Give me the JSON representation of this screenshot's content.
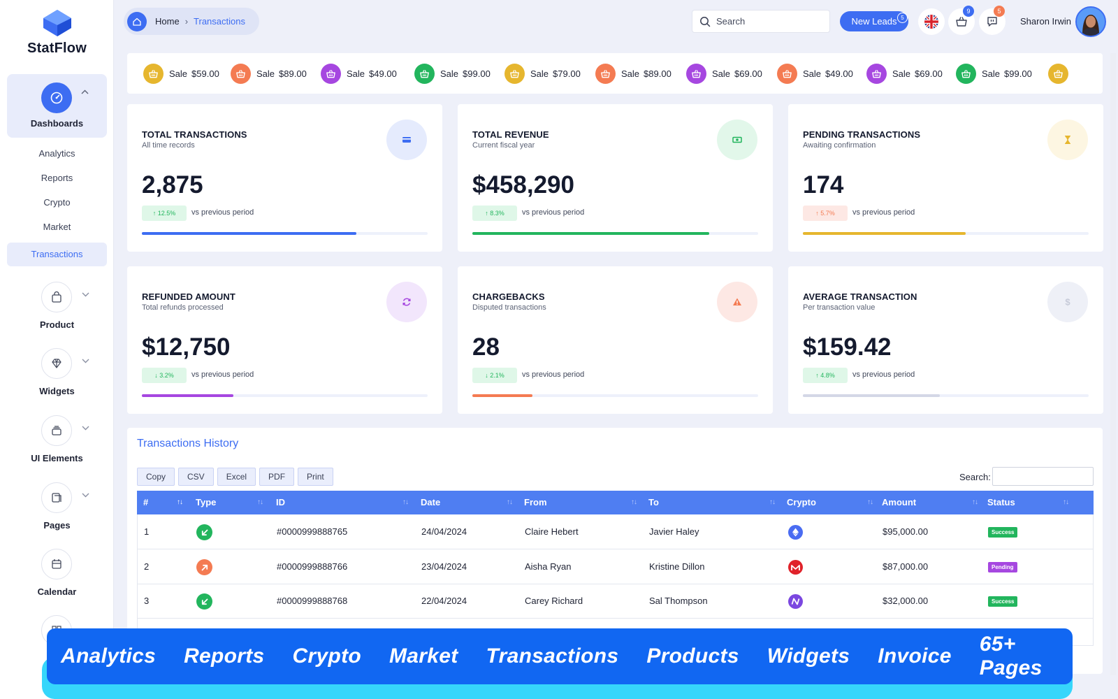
{
  "brand": {
    "name": "StatFlow"
  },
  "sidebar": {
    "dashboards_label": "Dashboards",
    "sub_items": [
      "Analytics",
      "Reports",
      "Crypto",
      "Market",
      "Transactions"
    ],
    "groups": [
      "Product",
      "Widgets",
      "UI Elements",
      "Pages",
      "Calendar"
    ]
  },
  "breadcrumb": {
    "home": "Home",
    "current": "Transactions"
  },
  "topbar": {
    "search_placeholder": "Search",
    "leads_label": "New Leads",
    "leads_count": "5",
    "cart_count": "9",
    "chat_count": "5",
    "user_name": "Sharon Irwin"
  },
  "ticker": [
    {
      "label": "Sale",
      "amount": "$59.00",
      "color": "#e6b62e"
    },
    {
      "label": "Sale",
      "amount": "$89.00",
      "color": "#f47b52"
    },
    {
      "label": "Sale",
      "amount": "$49.00",
      "color": "#a647e0"
    },
    {
      "label": "Sale",
      "amount": "$99.00",
      "color": "#22b55d"
    },
    {
      "label": "Sale",
      "amount": "$79.00",
      "color": "#e6b62e"
    },
    {
      "label": "Sale",
      "amount": "$89.00",
      "color": "#f47b52"
    },
    {
      "label": "Sale",
      "amount": "$69.00",
      "color": "#a647e0"
    },
    {
      "label": "Sale",
      "amount": "$49.00",
      "color": "#f47b52"
    },
    {
      "label": "Sale",
      "amount": "$69.00",
      "color": "#a647e0"
    },
    {
      "label": "Sale",
      "amount": "$99.00",
      "color": "#22b55d"
    },
    {
      "label": "",
      "amount": "",
      "color": "#e6b62e"
    }
  ],
  "cards": [
    {
      "title": "TOTAL TRANSACTIONS",
      "subtitle": "All time records",
      "value": "2,875",
      "change": "↑ 12.5%",
      "vs": "vs previous period",
      "progress": 0.75,
      "accent": "#3d6df2",
      "icon_bg": "#e5ebfd",
      "pill_bg": "#dff7e8",
      "pill_fg": "#22b55d"
    },
    {
      "title": "TOTAL REVENUE",
      "subtitle": "Current fiscal year",
      "value": "$458,290",
      "change": "↑ 8.3%",
      "vs": "vs previous period",
      "progress": 0.83,
      "accent": "#22b55d",
      "icon_bg": "#e2f7ea",
      "pill_bg": "#dff7e8",
      "pill_fg": "#22b55d"
    },
    {
      "title": "PENDING TRANSACTIONS",
      "subtitle": "Awaiting confirmation",
      "value": "174",
      "change": "↑ 5.7%",
      "vs": "vs previous period",
      "progress": 0.57,
      "accent": "#e6b62e",
      "icon_bg": "#fdf6e2",
      "pill_bg": "#fde8e4",
      "pill_fg": "#f47b52"
    },
    {
      "title": "REFUNDED AMOUNT",
      "subtitle": "Total refunds processed",
      "value": "$12,750",
      "change": "↓ 3.2%",
      "vs": "vs previous period",
      "progress": 0.32,
      "accent": "#a647e0",
      "icon_bg": "#f2e6fc",
      "pill_bg": "#dff7e8",
      "pill_fg": "#22b55d"
    },
    {
      "title": "CHARGEBACKS",
      "subtitle": "Disputed transactions",
      "value": "28",
      "change": "↓ 2.1%",
      "vs": "vs previous period",
      "progress": 0.21,
      "accent": "#f47b52",
      "icon_bg": "#fde8e4",
      "pill_bg": "#dff7e8",
      "pill_fg": "#22b55d"
    },
    {
      "title": "AVERAGE TRANSACTION",
      "subtitle": "Per transaction value",
      "value": "$159.42",
      "change": "↑ 4.8%",
      "vs": "vs previous period",
      "progress": 0.48,
      "accent": "#d4d7e6",
      "icon_bg": "#eef0f7",
      "pill_bg": "#dff7e8",
      "pill_fg": "#22b55d"
    }
  ],
  "table": {
    "title": "Transactions History",
    "export_buttons": [
      "Copy",
      "CSV",
      "Excel",
      "PDF",
      "Print"
    ],
    "search_label": "Search:",
    "columns": [
      "#",
      "Type",
      "ID",
      "Date",
      "From",
      "To",
      "Crypto",
      "Amount",
      "Status"
    ],
    "rows": [
      {
        "num": "1",
        "type": "incoming",
        "id": "#0000999888765",
        "date": "24/04/2024",
        "from": "Claire Hebert",
        "to": "Javier Haley",
        "crypto": "ethereum",
        "amount": "$95,000.00",
        "status": "Success"
      },
      {
        "num": "2",
        "type": "outgoing",
        "id": "#0000999888766",
        "date": "23/04/2024",
        "from": "Aisha Ryan",
        "to": "Kristine Dillon",
        "crypto": "monero",
        "amount": "$87,000.00",
        "status": "Pending"
      },
      {
        "num": "3",
        "type": "incoming",
        "id": "#0000999888768",
        "date": "22/04/2024",
        "from": "Carey Richard",
        "to": "Sal Thompson",
        "crypto": "nano",
        "amount": "$32,000.00",
        "status": "Success"
      }
    ]
  },
  "banner": [
    "Analytics",
    "Reports",
    "Crypto",
    "Market",
    "Transactions",
    "Products",
    "Widgets",
    "Invoice",
    "65+ Pages"
  ]
}
